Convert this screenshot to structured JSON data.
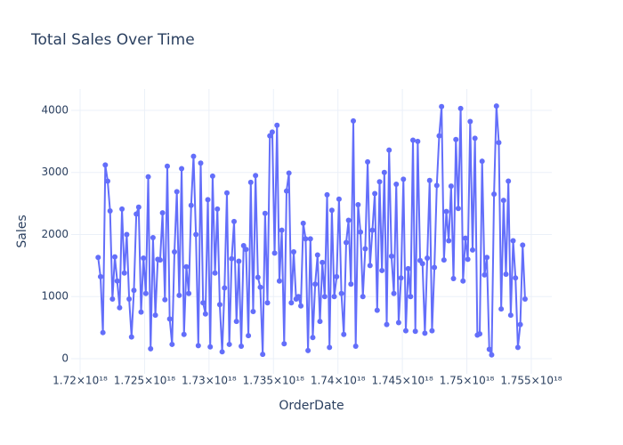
{
  "chart_data": {
    "type": "line",
    "title": "Total Sales Over Time",
    "x_label": "OrderDate",
    "y_label": "Sales",
    "color": "#636efa",
    "grid": true,
    "xlim": [
      1.71931e+18,
      1.75659e+18
    ],
    "ylim": [
      -244,
      4344
    ],
    "xticks": [
      {
        "value": 1.72e+18,
        "label": "1.72×10¹⁸"
      },
      {
        "value": 1.725e+18,
        "label": "1.725×10¹⁸"
      },
      {
        "value": 1.73e+18,
        "label": "1.73×10¹⁸"
      },
      {
        "value": 1.735e+18,
        "label": "1.735×10¹⁸"
      },
      {
        "value": 1.74e+18,
        "label": "1.74×10¹⁸"
      },
      {
        "value": 1.745e+18,
        "label": "1.745×10¹⁸"
      },
      {
        "value": 1.75e+18,
        "label": "1.75×10¹⁸"
      },
      {
        "value": 1.755e+18,
        "label": "1.755×10¹⁸"
      }
    ],
    "yticks": [
      0,
      1000,
      2000,
      3000,
      4000
    ],
    "x": [
      1.7214e+18,
      1.721585e+18,
      1.72177e+18,
      1.721955e+18,
      1.72214e+18,
      1.722325e+18,
      1.72251e+18,
      1.722695e+18,
      1.72288e+18,
      1.723065e+18,
      1.72325e+18,
      1.723435e+18,
      1.72362e+18,
      1.723805e+18,
      1.72399e+18,
      1.724175e+18,
      1.72436e+18,
      1.724545e+18,
      1.72473e+18,
      1.724915e+18,
      1.7251e+18,
      1.725285e+18,
      1.72547e+18,
      1.725655e+18,
      1.72584e+18,
      1.726025e+18,
      1.72621e+18,
      1.726395e+18,
      1.72658e+18,
      1.726765e+18,
      1.72695e+18,
      1.727135e+18,
      1.72732e+18,
      1.727505e+18,
      1.72769e+18,
      1.727875e+18,
      1.72806e+18,
      1.728245e+18,
      1.72843e+18,
      1.728615e+18,
      1.7288e+18,
      1.728985e+18,
      1.72917e+18,
      1.729355e+18,
      1.72954e+18,
      1.729725e+18,
      1.72991e+18,
      1.730095e+18,
      1.73028e+18,
      1.730465e+18,
      1.73065e+18,
      1.730835e+18,
      1.73102e+18,
      1.731205e+18,
      1.73139e+18,
      1.731575e+18,
      1.73176e+18,
      1.731945e+18,
      1.73213e+18,
      1.732315e+18,
      1.7325e+18,
      1.732685e+18,
      1.73287e+18,
      1.733055e+18,
      1.73324e+18,
      1.733425e+18,
      1.73361e+18,
      1.733795e+18,
      1.73398e+18,
      1.734165e+18,
      1.73435e+18,
      1.734535e+18,
      1.73472e+18,
      1.734905e+18,
      1.73509e+18,
      1.735275e+18,
      1.73546e+18,
      1.735645e+18,
      1.73583e+18,
      1.736015e+18,
      1.7362e+18,
      1.736385e+18,
      1.73657e+18,
      1.736755e+18,
      1.73694e+18,
      1.737125e+18,
      1.73731e+18,
      1.737495e+18,
      1.73768e+18,
      1.737865e+18,
      1.73805e+18,
      1.738235e+18,
      1.73842e+18,
      1.738605e+18,
      1.73879e+18,
      1.738975e+18,
      1.73916e+18,
      1.739345e+18,
      1.73953e+18,
      1.739715e+18,
      1.7399e+18,
      1.740085e+18,
      1.74027e+18,
      1.740455e+18,
      1.74064e+18,
      1.740825e+18,
      1.74101e+18,
      1.741195e+18,
      1.74138e+18,
      1.741565e+18,
      1.74175e+18,
      1.741935e+18,
      1.74212e+18,
      1.742305e+18,
      1.74249e+18,
      1.742675e+18,
      1.74286e+18,
      1.743045e+18,
      1.74323e+18,
      1.743415e+18,
      1.7436e+18,
      1.743785e+18,
      1.74397e+18,
      1.744155e+18,
      1.74434e+18,
      1.744525e+18,
      1.74471e+18,
      1.744895e+18,
      1.74508e+18,
      1.745265e+18,
      1.74545e+18,
      1.745635e+18,
      1.74582e+18,
      1.746005e+18,
      1.74619e+18,
      1.746375e+18,
      1.74656e+18,
      1.746745e+18,
      1.74693e+18,
      1.747115e+18,
      1.7473e+18,
      1.747485e+18,
      1.74767e+18,
      1.747855e+18,
      1.74804e+18,
      1.748225e+18,
      1.74841e+18,
      1.748595e+18,
      1.74878e+18,
      1.748965e+18,
      1.74915e+18,
      1.749335e+18,
      1.74952e+18,
      1.749705e+18,
      1.74989e+18,
      1.750075e+18,
      1.75026e+18,
      1.750445e+18,
      1.75063e+18,
      1.750815e+18,
      1.751e+18,
      1.751185e+18,
      1.75137e+18,
      1.751555e+18,
      1.75174e+18,
      1.751925e+18,
      1.75211e+18,
      1.752295e+18,
      1.75248e+18,
      1.752665e+18,
      1.75285e+18,
      1.753035e+18,
      1.75322e+18,
      1.753405e+18,
      1.75359e+18,
      1.753775e+18,
      1.75396e+18,
      1.754145e+18,
      1.75433e+18,
      1.754515e+18
    ],
    "values": [
      1630,
      1320,
      420,
      3120,
      2860,
      2380,
      960,
      1640,
      1250,
      820,
      2410,
      1380,
      2000,
      960,
      350,
      1100,
      2330,
      2440,
      750,
      1620,
      1050,
      2930,
      160,
      1950,
      700,
      1600,
      1590,
      2350,
      950,
      3100,
      640,
      230,
      1720,
      2690,
      1020,
      3060,
      390,
      1480,
      1050,
      2470,
      3260,
      2000,
      210,
      3150,
      900,
      720,
      2560,
      190,
      2940,
      1380,
      2410,
      870,
      110,
      1140,
      2670,
      230,
      1610,
      2210,
      600,
      1570,
      200,
      1820,
      1760,
      370,
      2840,
      760,
      2950,
      1310,
      1150,
      70,
      2340,
      900,
      3590,
      3650,
      1700,
      3760,
      1250,
      2070,
      240,
      2700,
      2990,
      900,
      1720,
      960,
      1000,
      850,
      2180,
      1930,
      130,
      1930,
      340,
      1200,
      1670,
      600,
      1550,
      1000,
      2640,
      180,
      2390,
      1000,
      1320,
      2570,
      1050,
      390,
      1870,
      2230,
      1200,
      3830,
      200,
      2480,
      2040,
      1000,
      1770,
      3170,
      1500,
      2070,
      2660,
      780,
      2850,
      1420,
      3000,
      550,
      3360,
      1650,
      1050,
      2810,
      580,
      1300,
      2890,
      450,
      1450,
      1000,
      3520,
      440,
      3500,
      1580,
      1530,
      410,
      1620,
      2870,
      450,
      1470,
      2790,
      3590,
      4060,
      1590,
      2370,
      1900,
      2780,
      1290,
      3530,
      2420,
      4030,
      1250,
      1940,
      1600,
      3820,
      1750,
      3550,
      380,
      400,
      3180,
      1350,
      1630,
      150,
      60,
      2650,
      4070,
      3480,
      800,
      2550,
      1360,
      2860,
      700,
      1900,
      1300,
      180,
      550,
      1830,
      960
    ]
  }
}
